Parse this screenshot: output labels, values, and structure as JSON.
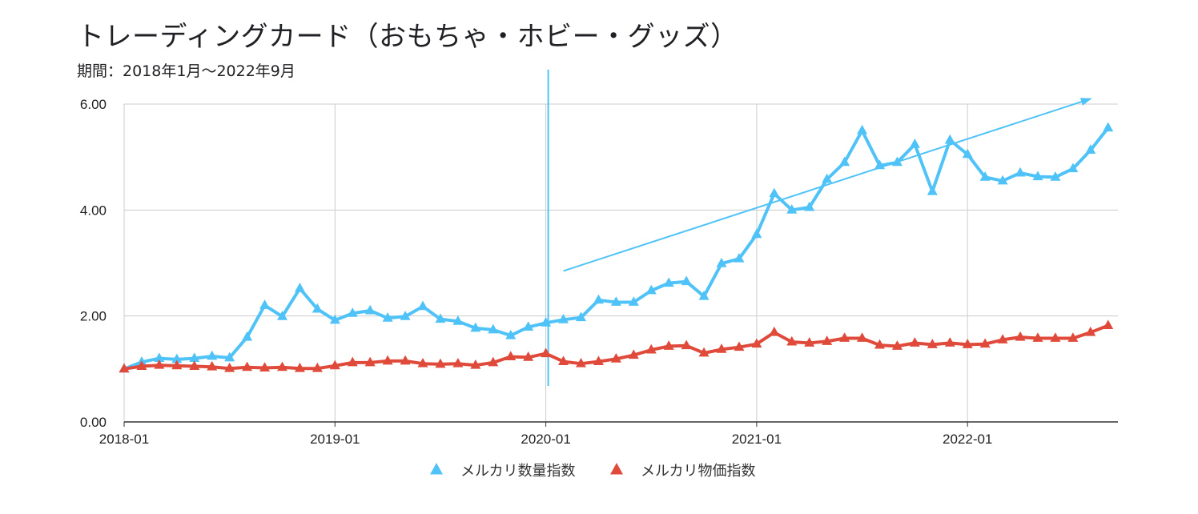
{
  "chart_data": {
    "type": "line",
    "title": "トレーディングカード（おもちゃ・ホビー・グッズ）",
    "subtitle": "期間：2018年1月〜2022年9月",
    "xlabel": "",
    "ylabel": "",
    "ylim": [
      0,
      6
    ],
    "y_ticks": [
      "0.00",
      "2.00",
      "4.00",
      "6.00"
    ],
    "x_ticks": [
      "2018-01",
      "2019-01",
      "2020-01",
      "2021-01",
      "2022-01"
    ],
    "grid": true,
    "legend_position": "bottom",
    "x": [
      "2018-01",
      "2018-02",
      "2018-03",
      "2018-04",
      "2018-05",
      "2018-06",
      "2018-07",
      "2018-08",
      "2018-09",
      "2018-10",
      "2018-11",
      "2018-12",
      "2019-01",
      "2019-02",
      "2019-03",
      "2019-04",
      "2019-05",
      "2019-06",
      "2019-07",
      "2019-08",
      "2019-09",
      "2019-10",
      "2019-11",
      "2019-12",
      "2020-01",
      "2020-02",
      "2020-03",
      "2020-04",
      "2020-05",
      "2020-06",
      "2020-07",
      "2020-08",
      "2020-09",
      "2020-10",
      "2020-11",
      "2020-12",
      "2021-01",
      "2021-02",
      "2021-03",
      "2021-04",
      "2021-05",
      "2021-06",
      "2021-07",
      "2021-08",
      "2021-09",
      "2021-10",
      "2021-11",
      "2021-12",
      "2022-01",
      "2022-02",
      "2022-03",
      "2022-04",
      "2022-05",
      "2022-06",
      "2022-07",
      "2022-08",
      "2022-09"
    ],
    "series": [
      {
        "name": "メルカリ数量指数",
        "color": "#4fc3f7",
        "values": [
          1.0,
          1.13,
          1.2,
          1.18,
          1.2,
          1.24,
          1.21,
          1.6,
          2.2,
          1.99,
          2.52,
          2.13,
          1.92,
          2.05,
          2.1,
          1.96,
          1.99,
          2.18,
          1.94,
          1.9,
          1.77,
          1.74,
          1.63,
          1.79,
          1.87,
          1.93,
          1.97,
          2.3,
          2.26,
          2.26,
          2.48,
          2.62,
          2.65,
          2.37,
          2.99,
          3.08,
          3.54,
          4.31,
          4.0,
          4.05,
          4.58,
          4.9,
          5.5,
          4.84,
          4.9,
          5.24,
          4.35,
          5.32,
          5.05,
          4.62,
          4.55,
          4.7,
          4.63,
          4.62,
          4.78,
          5.13,
          5.55
        ]
      },
      {
        "name": "メルカリ物価指数",
        "color": "#e04a3a",
        "values": [
          1.0,
          1.05,
          1.07,
          1.06,
          1.05,
          1.04,
          1.01,
          1.03,
          1.02,
          1.03,
          1.01,
          1.01,
          1.06,
          1.12,
          1.12,
          1.15,
          1.15,
          1.1,
          1.09,
          1.1,
          1.07,
          1.12,
          1.23,
          1.22,
          1.29,
          1.14,
          1.1,
          1.14,
          1.19,
          1.26,
          1.36,
          1.43,
          1.44,
          1.3,
          1.37,
          1.41,
          1.47,
          1.69,
          1.51,
          1.49,
          1.52,
          1.58,
          1.58,
          1.45,
          1.43,
          1.49,
          1.46,
          1.49,
          1.46,
          1.47,
          1.55,
          1.6,
          1.58,
          1.58,
          1.58,
          1.69,
          1.82
        ]
      }
    ],
    "annotations": [
      {
        "type": "vertical-line",
        "x": "2020-01",
        "color": "#4fc3f7"
      },
      {
        "type": "arrow",
        "from": [
          "2020-02",
          2.85
        ],
        "to": [
          "2022-08",
          6.1
        ],
        "color": "#4fc3f7"
      }
    ]
  }
}
